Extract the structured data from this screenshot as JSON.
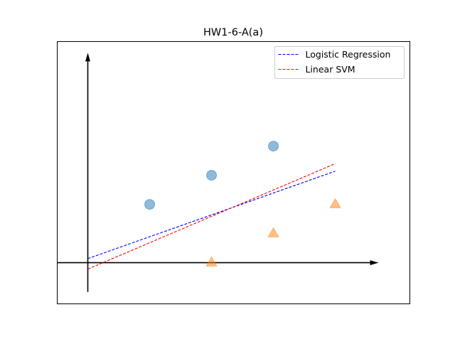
{
  "chart_data": {
    "type": "scatter",
    "title": "HW1-6-A(a)",
    "xlabel": "",
    "ylabel": "",
    "xlim": [
      -0.5,
      5.2
    ],
    "ylim": [
      -0.7,
      3.8
    ],
    "grid": false,
    "legend_position": "top-right",
    "axes_arrows": {
      "x_axis": {
        "from": [
          -0.5,
          0
        ],
        "to": [
          4.7,
          0
        ]
      },
      "y_axis": {
        "from": [
          0,
          -0.5
        ],
        "to": [
          0,
          3.6
        ]
      }
    },
    "series": [
      {
        "kind": "scatter",
        "marker": "circle",
        "color": "#1f77b4",
        "points": [
          [
            1,
            1
          ],
          [
            2,
            1.5
          ],
          [
            3,
            2
          ]
        ]
      },
      {
        "kind": "scatter",
        "marker": "triangle",
        "color": "#ff7f0e",
        "points": [
          [
            2,
            0
          ],
          [
            3,
            0.5
          ],
          [
            4,
            1
          ]
        ]
      },
      {
        "kind": "line",
        "name": "Logistic Regression",
        "color": "#0000ff",
        "dash": "dashed",
        "points": [
          [
            0,
            0.07
          ],
          [
            4,
            1.57
          ]
        ]
      },
      {
        "kind": "line",
        "name": "Linear SVM",
        "color": "#ff0000",
        "dash": "dashed",
        "points": [
          [
            0,
            -0.11
          ],
          [
            4,
            1.7
          ]
        ]
      }
    ]
  }
}
